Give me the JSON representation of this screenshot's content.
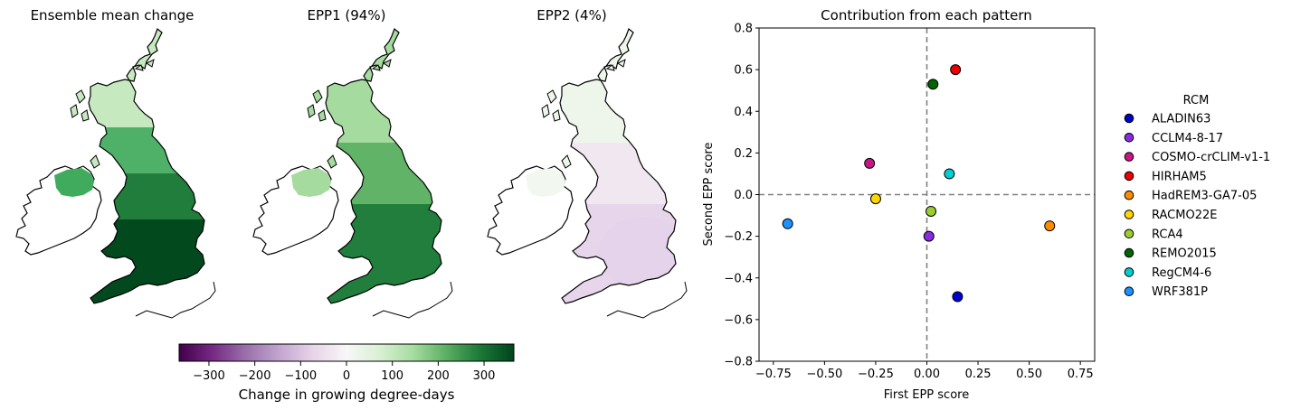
{
  "maps": [
    {
      "title": "Ensemble mean change",
      "fill_levels": [
        0.95,
        0.85,
        0.7,
        0.55
      ],
      "ireland_level": 0.6,
      "colors": [
        "#c7e9c0",
        "#41ab5d",
        "#1b7837",
        "#00441b"
      ]
    },
    {
      "title": "EPP1 (94%)",
      "fill_levels": [
        0.5,
        0.6,
        0.75
      ],
      "ireland_level": 0.45,
      "colors": [
        "#a6dba0",
        "#5aae61",
        "#1b7837"
      ]
    },
    {
      "title": "EPP2 (4%)",
      "fill_levels": [
        0.1
      ],
      "ireland_level": 0.05,
      "colors": [
        "#eef6ec",
        "#f1e6f2",
        "#e4d3ea"
      ]
    }
  ],
  "colorbar": {
    "label": "Change in growing degree-days",
    "ticks": [
      "−300",
      "−200",
      "−100",
      "0",
      "100",
      "200",
      "300"
    ],
    "tick_values": [
      -300,
      -200,
      -100,
      0,
      100,
      200,
      300
    ],
    "range": [
      -365,
      365
    ],
    "cmap": [
      "#40004b",
      "#762a83",
      "#9970ab",
      "#c2a5cf",
      "#e7d4e8",
      "#f7f7f7",
      "#d9f0d3",
      "#a6dba0",
      "#5aae61",
      "#1b7837",
      "#00441b"
    ]
  },
  "chart_data": {
    "type": "scatter",
    "title": "Contribution from each pattern",
    "xlabel": "First EPP score",
    "ylabel": "Second EPP score",
    "xlim": [
      -0.82,
      0.82
    ],
    "ylim": [
      -0.8,
      0.8
    ],
    "xticks": [
      -0.75,
      -0.5,
      -0.25,
      0.0,
      0.25,
      0.5,
      0.75
    ],
    "xtick_labels": [
      "−0.75",
      "−0.50",
      "−0.25",
      "0.00",
      "0.25",
      "0.50",
      "0.75"
    ],
    "yticks": [
      -0.8,
      -0.6,
      -0.4,
      -0.2,
      0.0,
      0.2,
      0.4,
      0.6,
      0.8
    ],
    "ytick_labels": [
      "−0.8",
      "−0.6",
      "−0.4",
      "−0.2",
      "0.0",
      "0.2",
      "0.4",
      "0.6",
      "0.8"
    ],
    "grid": false,
    "reference_lines": {
      "x": 0,
      "y": 0,
      "style": "dashed",
      "color": "#808080"
    },
    "legend_title": "RCM",
    "legend_placement": "outside-right",
    "series": [
      {
        "name": "ALADIN63",
        "color": "#0000cd",
        "x": 0.15,
        "y": -0.49
      },
      {
        "name": "CCLM4-8-17",
        "color": "#8a2be2",
        "x": 0.01,
        "y": -0.2
      },
      {
        "name": "COSMO-crCLIM-v1-1",
        "color": "#c71585",
        "x": -0.28,
        "y": 0.15
      },
      {
        "name": "HIRHAM5",
        "color": "#ee0000",
        "x": 0.14,
        "y": 0.6
      },
      {
        "name": "HadREM3-GA7-05",
        "color": "#ff8c00",
        "x": 0.6,
        "y": -0.15
      },
      {
        "name": "RACMO22E",
        "color": "#ffd700",
        "x": -0.25,
        "y": -0.02
      },
      {
        "name": "RCA4",
        "color": "#9acd32",
        "x": 0.02,
        "y": -0.08
      },
      {
        "name": "REMO2015",
        "color": "#006400",
        "x": 0.03,
        "y": 0.53
      },
      {
        "name": "RegCM4-6",
        "color": "#00ced1",
        "x": 0.11,
        "y": 0.1
      },
      {
        "name": "WRF381P",
        "color": "#1e90ff",
        "x": -0.68,
        "y": -0.14
      }
    ]
  }
}
